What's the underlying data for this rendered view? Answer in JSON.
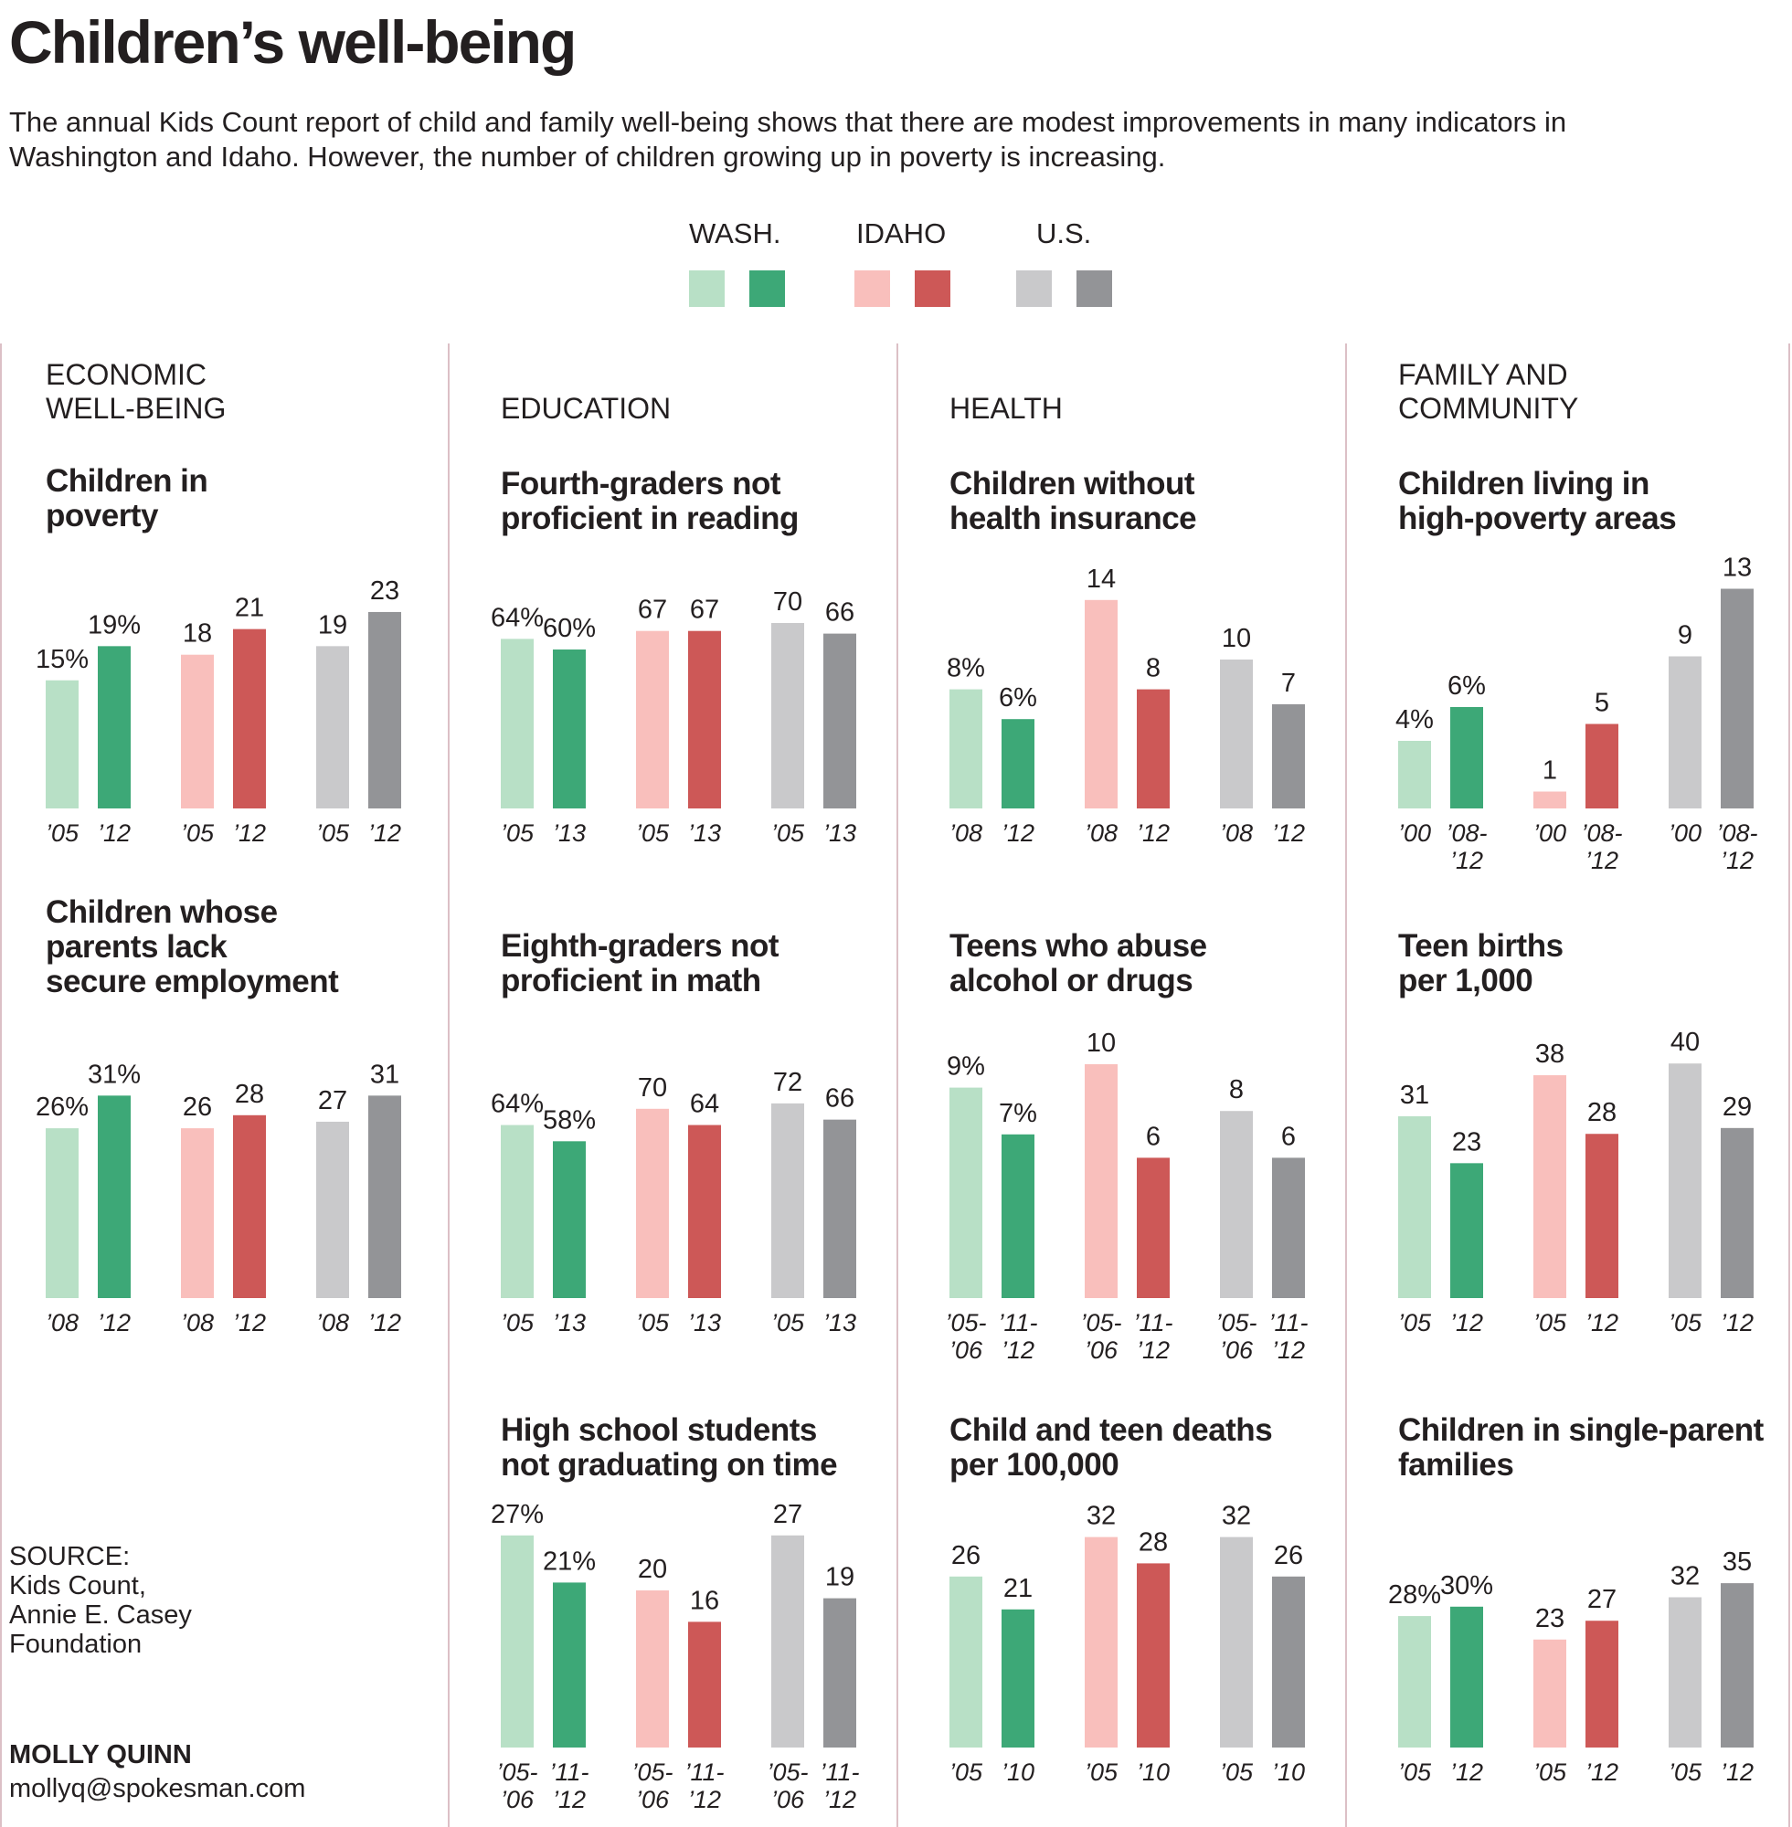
{
  "header": {
    "title": "Children’s well-being",
    "intro": "The annual Kids Count report of child and family well-being shows that there are modest improvements in many indicators in Washington and Idaho. However, the number of children growing up in poverty is increasing."
  },
  "legend": {
    "items": [
      {
        "label": "WASH.",
        "colors": [
          "#b8e0c6",
          "#3da877"
        ]
      },
      {
        "label": "IDAHO",
        "colors": [
          "#f9bfbc",
          "#cd5857"
        ]
      },
      {
        "label": "U.S.",
        "colors": [
          "#c9c9cb",
          "#939497"
        ]
      }
    ]
  },
  "sections": [
    {
      "title": "ECONOMIC\nWELL-BEING"
    },
    {
      "title": "EDUCATION"
    },
    {
      "title": "HEALTH"
    },
    {
      "title": "FAMILY AND\nCOMMUNITY"
    }
  ],
  "chart_data": [
    {
      "type": "bar",
      "title": "Children in\npoverty",
      "unit": "percent",
      "groups": [
        {
          "name": "WASH.",
          "values": [
            15,
            19
          ],
          "labels": [
            "15%",
            "19%"
          ],
          "ticks": [
            "’05",
            "’12"
          ]
        },
        {
          "name": "IDAHO",
          "values": [
            18,
            21
          ],
          "labels": [
            "18",
            "21"
          ],
          "ticks": [
            "’05",
            "’12"
          ]
        },
        {
          "name": "U.S.",
          "values": [
            19,
            23
          ],
          "labels": [
            "19",
            "23"
          ],
          "ticks": [
            "’05",
            "’12"
          ]
        }
      ]
    },
    {
      "type": "bar",
      "title": "Children whose\nparents lack\nsecure employment",
      "unit": "percent",
      "groups": [
        {
          "name": "WASH.",
          "values": [
            26,
            31
          ],
          "labels": [
            "26%",
            "31%"
          ],
          "ticks": [
            "’08",
            "’12"
          ]
        },
        {
          "name": "IDAHO",
          "values": [
            26,
            28
          ],
          "labels": [
            "26",
            "28"
          ],
          "ticks": [
            "’08",
            "’12"
          ]
        },
        {
          "name": "U.S.",
          "values": [
            27,
            31
          ],
          "labels": [
            "27",
            "31"
          ],
          "ticks": [
            "’08",
            "’12"
          ]
        }
      ]
    },
    {
      "type": "bar",
      "title": "Fourth-graders not\nproficient in reading",
      "unit": "percent",
      "groups": [
        {
          "name": "WASH.",
          "values": [
            64,
            60
          ],
          "labels": [
            "64%",
            "60%"
          ],
          "ticks": [
            "’05",
            "’13"
          ]
        },
        {
          "name": "IDAHO",
          "values": [
            67,
            67
          ],
          "labels": [
            "67",
            "67"
          ],
          "ticks": [
            "’05",
            "’13"
          ]
        },
        {
          "name": "U.S.",
          "values": [
            70,
            66
          ],
          "labels": [
            "70",
            "66"
          ],
          "ticks": [
            "’05",
            "’13"
          ]
        }
      ]
    },
    {
      "type": "bar",
      "title": "Eighth-graders not\nproficient in math",
      "unit": "percent",
      "groups": [
        {
          "name": "WASH.",
          "values": [
            64,
            58
          ],
          "labels": [
            "64%",
            "58%"
          ],
          "ticks": [
            "’05",
            "’13"
          ]
        },
        {
          "name": "IDAHO",
          "values": [
            70,
            64
          ],
          "labels": [
            "70",
            "64"
          ],
          "ticks": [
            "’05",
            "’13"
          ]
        },
        {
          "name": "U.S.",
          "values": [
            72,
            66
          ],
          "labels": [
            "72",
            "66"
          ],
          "ticks": [
            "’05",
            "’13"
          ]
        }
      ]
    },
    {
      "type": "bar",
      "title": "High school students\nnot graduating on time",
      "unit": "percent",
      "groups": [
        {
          "name": "WASH.",
          "values": [
            27,
            21
          ],
          "labels": [
            "27%",
            "21%"
          ],
          "ticks": [
            "’05-\n’06",
            "’11-\n’12"
          ]
        },
        {
          "name": "IDAHO",
          "values": [
            20,
            16
          ],
          "labels": [
            "20",
            "16"
          ],
          "ticks": [
            "’05-\n’06",
            "’11-\n’12"
          ]
        },
        {
          "name": "U.S.",
          "values": [
            27,
            19
          ],
          "labels": [
            "27",
            "19"
          ],
          "ticks": [
            "’05-\n’06",
            "’11-\n’12"
          ]
        }
      ]
    },
    {
      "type": "bar",
      "title": "Children without\nhealth insurance",
      "unit": "percent",
      "groups": [
        {
          "name": "WASH.",
          "values": [
            8,
            6
          ],
          "labels": [
            "8%",
            "6%"
          ],
          "ticks": [
            "’08",
            "’12"
          ]
        },
        {
          "name": "IDAHO",
          "values": [
            14,
            8
          ],
          "labels": [
            "14",
            "8"
          ],
          "ticks": [
            "’08",
            "’12"
          ]
        },
        {
          "name": "U.S.",
          "values": [
            10,
            7
          ],
          "labels": [
            "10",
            "7"
          ],
          "ticks": [
            "’08",
            "’12"
          ]
        }
      ]
    },
    {
      "type": "bar",
      "title": "Teens who abuse\nalcohol or drugs",
      "unit": "percent",
      "groups": [
        {
          "name": "WASH.",
          "values": [
            9,
            7
          ],
          "labels": [
            "9%",
            "7%"
          ],
          "ticks": [
            "’05-\n’06",
            "’11-\n’12"
          ]
        },
        {
          "name": "IDAHO",
          "values": [
            10,
            6
          ],
          "labels": [
            "10",
            "6"
          ],
          "ticks": [
            "’05-\n’06",
            "’11-\n’12"
          ]
        },
        {
          "name": "U.S.",
          "values": [
            8,
            6
          ],
          "labels": [
            "8",
            "6"
          ],
          "ticks": [
            "’05-\n’06",
            "’11-\n’12"
          ]
        }
      ]
    },
    {
      "type": "bar",
      "title": "Child and teen deaths\nper 100,000",
      "groups": [
        {
          "name": "WASH.",
          "values": [
            26,
            21
          ],
          "labels": [
            "26",
            "21"
          ],
          "ticks": [
            "’05",
            "’10"
          ]
        },
        {
          "name": "IDAHO",
          "values": [
            32,
            28
          ],
          "labels": [
            "32",
            "28"
          ],
          "ticks": [
            "’05",
            "’10"
          ]
        },
        {
          "name": "U.S.",
          "values": [
            32,
            26
          ],
          "labels": [
            "32",
            "26"
          ],
          "ticks": [
            "’05",
            "’10"
          ]
        }
      ]
    },
    {
      "type": "bar",
      "title": "Children living in\nhigh-poverty areas",
      "unit": "percent",
      "groups": [
        {
          "name": "WASH.",
          "values": [
            4,
            6
          ],
          "labels": [
            "4%",
            "6%"
          ],
          "ticks": [
            "’00",
            "’08-\n’12"
          ]
        },
        {
          "name": "IDAHO",
          "values": [
            1,
            5
          ],
          "labels": [
            "1",
            "5"
          ],
          "ticks": [
            "’00",
            "’08-\n’12"
          ]
        },
        {
          "name": "U.S.",
          "values": [
            9,
            13
          ],
          "labels": [
            "9",
            "13"
          ],
          "ticks": [
            "’00",
            "’08-\n’12"
          ]
        }
      ]
    },
    {
      "type": "bar",
      "title": "Teen births\nper 1,000",
      "groups": [
        {
          "name": "WASH.",
          "values": [
            31,
            23
          ],
          "labels": [
            "31",
            "23"
          ],
          "ticks": [
            "’05",
            "’12"
          ]
        },
        {
          "name": "IDAHO",
          "values": [
            38,
            28
          ],
          "labels": [
            "38",
            "28"
          ],
          "ticks": [
            "’05",
            "’12"
          ]
        },
        {
          "name": "U.S.",
          "values": [
            40,
            29
          ],
          "labels": [
            "40",
            "29"
          ],
          "ticks": [
            "’05",
            "’12"
          ]
        }
      ]
    },
    {
      "type": "bar",
      "title": "Children in single-parent\nfamilies",
      "unit": "percent",
      "groups": [
        {
          "name": "WASH.",
          "values": [
            28,
            30
          ],
          "labels": [
            "28%",
            "30%"
          ],
          "ticks": [
            "’05",
            "’12"
          ]
        },
        {
          "name": "IDAHO",
          "values": [
            23,
            27
          ],
          "labels": [
            "23",
            "27"
          ],
          "ticks": [
            "’05",
            "’12"
          ]
        },
        {
          "name": "U.S.",
          "values": [
            32,
            35
          ],
          "labels": [
            "32",
            "35"
          ],
          "ticks": [
            "’05",
            "’12"
          ]
        }
      ]
    }
  ],
  "footer": {
    "source": "SOURCE:\nKids Count,\nAnnie E. Casey\nFoundation",
    "credit_name": "MOLLY QUINN",
    "credit_email": "mollyq@spokesman.com"
  }
}
